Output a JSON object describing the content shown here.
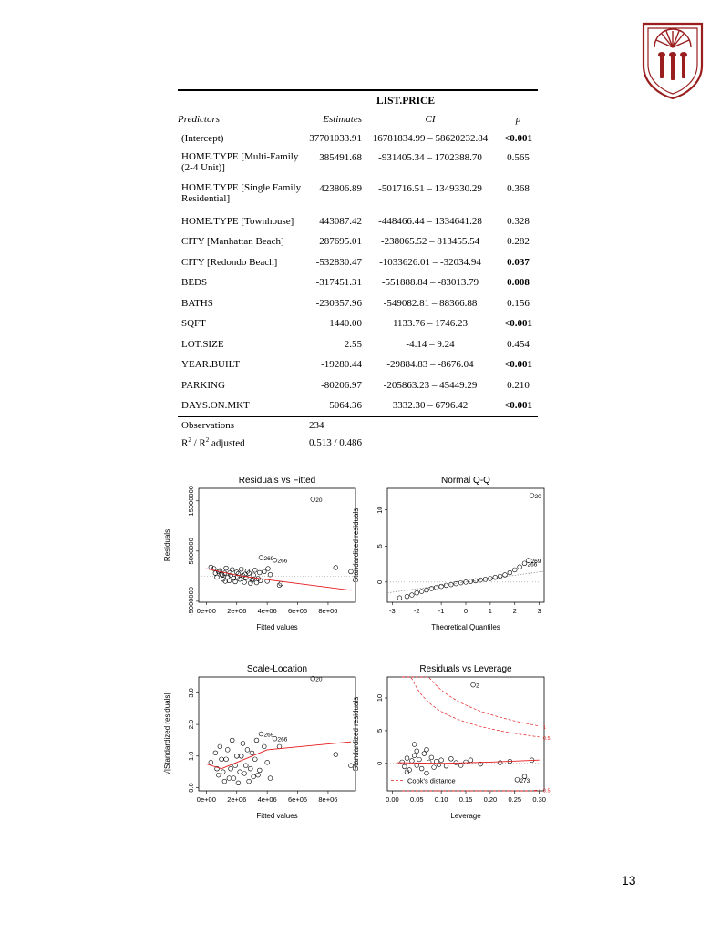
{
  "table": {
    "dependent_variable": "LIST.PRICE",
    "headers": {
      "predictors": "Predictors",
      "estimates": "Estimates",
      "ci": "CI",
      "p": "p"
    },
    "rows": [
      {
        "predictor": "(Intercept)",
        "estimate": "37701033.91",
        "ci": "16781834.99 – 58620232.84",
        "p": "<0.001"
      },
      {
        "predictor": "HOME.TYPE [Multi-Family (2-4 Unit)]",
        "estimate": "385491.68",
        "ci": "-931405.34 – 1702388.70",
        "p": "0.565"
      },
      {
        "predictor": "HOME.TYPE [Single Family Residential]",
        "estimate": "423806.89",
        "ci": "-501716.51 – 1349330.29",
        "p": "0.368"
      },
      {
        "predictor": "HOME.TYPE [Townhouse]",
        "estimate": "443087.42",
        "ci": "-448466.44 – 1334641.28",
        "p": "0.328"
      },
      {
        "predictor": "CITY [Manhattan Beach]",
        "estimate": "287695.01",
        "ci": "-238065.52 – 813455.54",
        "p": "0.282"
      },
      {
        "predictor": "CITY [Redondo Beach]",
        "estimate": "-532830.47",
        "ci": "-1033626.01 – -32034.94",
        "p": "0.037"
      },
      {
        "predictor": "BEDS",
        "estimate": "-317451.31",
        "ci": "-551888.84 – -83013.79",
        "p": "0.008"
      },
      {
        "predictor": "BATHS",
        "estimate": "-230357.96",
        "ci": "-549082.81 – 88366.88",
        "p": "0.156"
      },
      {
        "predictor": "SQFT",
        "estimate": "1440.00",
        "ci": "1133.76 – 1746.23",
        "p": "<0.001"
      },
      {
        "predictor": "LOT.SIZE",
        "estimate": "2.55",
        "ci": "-4.14 – 9.24",
        "p": "0.454"
      },
      {
        "predictor": "YEAR.BUILT",
        "estimate": "-19280.44",
        "ci": "-29884.83 – -8676.04",
        "p": "<0.001"
      },
      {
        "predictor": "PARKING",
        "estimate": "-80206.97",
        "ci": "-205863.23 – 45449.29",
        "p": "0.210"
      },
      {
        "predictor": "DAYS.ON.MKT",
        "estimate": "5064.36",
        "ci": "3332.30 – 6796.42",
        "p": "<0.001"
      }
    ],
    "observations_label": "Observations",
    "observations_value": "234",
    "r2_label_prefix": "R",
    "r2_label_mid": " / R",
    "r2_label_suffix": " adjusted",
    "r2_sup": "2",
    "r2_value": "0.513 / 0.486"
  },
  "chart_data": [
    {
      "type": "scatter",
      "title": "Residuals vs Fitted",
      "xlabel": "Fitted values",
      "ylabel": "Residuals",
      "xlim": [
        -500000,
        9800000
      ],
      "ylim": [
        -5200000,
        17500000
      ],
      "xticks": [
        0,
        2000000,
        4000000,
        6000000,
        8000000
      ],
      "xtick_labels": [
        "0e+00",
        "2e+06",
        "4e+06",
        "6e+06",
        "8e+06"
      ],
      "yticks": [
        -5000000,
        5000000,
        15000000
      ],
      "ytick_labels": [
        "-5000000",
        "5000000",
        "15000000"
      ],
      "annotations": [
        {
          "label": "20",
          "x": 7000000,
          "y": 15300000
        },
        {
          "label": "269",
          "x": 3600000,
          "y": 3700000
        },
        {
          "label": "266",
          "x": 4500000,
          "y": 3200000
        }
      ],
      "points": [
        [
          7000000,
          15300000
        ],
        [
          3600000,
          3700000
        ],
        [
          4500000,
          3200000
        ],
        [
          8500000,
          1700000
        ],
        [
          9500000,
          900000
        ],
        [
          4800000,
          -1800000
        ],
        [
          4900000,
          -1500000
        ],
        [
          500000,
          1500000
        ],
        [
          800000,
          900000
        ],
        [
          1000000,
          400000
        ],
        [
          1200000,
          600000
        ],
        [
          1400000,
          -200000
        ],
        [
          1600000,
          200000
        ],
        [
          1800000,
          -400000
        ],
        [
          2000000,
          800000
        ],
        [
          2200000,
          -600000
        ],
        [
          2400000,
          100000
        ],
        [
          2600000,
          -300000
        ],
        [
          2800000,
          600000
        ],
        [
          3000000,
          -800000
        ],
        [
          3200000,
          1200000
        ],
        [
          3400000,
          -500000
        ],
        [
          3800000,
          900000
        ],
        [
          4000000,
          -1000000
        ],
        [
          4200000,
          300000
        ],
        [
          700000,
          -200000
        ],
        [
          900000,
          1100000
        ],
        [
          1100000,
          -600000
        ],
        [
          1300000,
          1600000
        ],
        [
          1500000,
          -900000
        ],
        [
          1700000,
          1300000
        ],
        [
          1900000,
          -1100000
        ],
        [
          2100000,
          500000
        ],
        [
          2300000,
          1400000
        ],
        [
          2500000,
          -1200000
        ],
        [
          2700000,
          1000000
        ],
        [
          2900000,
          -1400000
        ],
        [
          3100000,
          200000
        ],
        [
          3300000,
          -1300000
        ],
        [
          3500000,
          700000
        ],
        [
          600000,
          600000
        ],
        [
          1050000,
          200000
        ],
        [
          1550000,
          700000
        ],
        [
          2050000,
          -200000
        ],
        [
          2550000,
          400000
        ],
        [
          3050000,
          -600000
        ],
        [
          3550000,
          -900000
        ],
        [
          4050000,
          1500000
        ],
        [
          300000,
          1800000
        ],
        [
          1250000,
          -1000000
        ]
      ],
      "smooth": [
        [
          0,
          1500000
        ],
        [
          2000000,
          200000
        ],
        [
          4000000,
          -700000
        ],
        [
          9500000,
          -2800000
        ]
      ]
    },
    {
      "type": "scatter",
      "title": "Normal Q-Q",
      "xlabel": "Theoretical Quantiles",
      "ylabel": "Standardized residuals",
      "xlim": [
        -3.2,
        3.2
      ],
      "ylim": [
        -2.8,
        13
      ],
      "xticks": [
        -3,
        -2,
        -1,
        0,
        1,
        2,
        3
      ],
      "xtick_labels": [
        "-3",
        "-2",
        "-1",
        "0",
        "1",
        "2",
        "3"
      ],
      "yticks": [
        0,
        5,
        10
      ],
      "ytick_labels": [
        "0",
        "5",
        "10"
      ],
      "annotations": [
        {
          "label": "20",
          "x": 2.7,
          "y": 12
        },
        {
          "label": "269",
          "x": 2.55,
          "y": 3
        },
        {
          "label": "266",
          "x": 2.4,
          "y": 2.6
        }
      ],
      "reference_line": [
        [
          -3.2,
          -1.5
        ],
        [
          3.2,
          1.5
        ]
      ],
      "points": [
        [
          -2.7,
          -2.2
        ],
        [
          -2.4,
          -2.0
        ],
        [
          -2.2,
          -1.8
        ],
        [
          -2.0,
          -1.5
        ],
        [
          -1.8,
          -1.3
        ],
        [
          -1.6,
          -1.1
        ],
        [
          -1.4,
          -0.9
        ],
        [
          -1.2,
          -0.75
        ],
        [
          -1.0,
          -0.6
        ],
        [
          -0.8,
          -0.45
        ],
        [
          -0.6,
          -0.35
        ],
        [
          -0.4,
          -0.22
        ],
        [
          -0.2,
          -0.1
        ],
        [
          0.0,
          0.0
        ],
        [
          0.2,
          0.1
        ],
        [
          0.4,
          0.18
        ],
        [
          0.6,
          0.28
        ],
        [
          0.8,
          0.38
        ],
        [
          1.0,
          0.5
        ],
        [
          1.2,
          0.65
        ],
        [
          1.4,
          0.8
        ],
        [
          1.6,
          1.0
        ],
        [
          1.8,
          1.3
        ],
        [
          2.0,
          1.7
        ],
        [
          2.2,
          2.1
        ],
        [
          2.4,
          2.6
        ],
        [
          2.55,
          3.0
        ],
        [
          2.7,
          12
        ]
      ]
    },
    {
      "type": "scatter",
      "title": "Scale-Location",
      "xlabel": "Fitted values",
      "ylabel": "√|Standardized residuals|",
      "xlim": [
        -500000,
        9800000
      ],
      "ylim": [
        -0.1,
        3.5
      ],
      "xticks": [
        0,
        2000000,
        4000000,
        6000000,
        8000000
      ],
      "xtick_labels": [
        "0e+00",
        "2e+06",
        "4e+06",
        "6e+06",
        "8e+06"
      ],
      "yticks": [
        0.0,
        1.0,
        2.0,
        3.0
      ],
      "ytick_labels": [
        "0.0",
        "1.0",
        "2.0",
        "3.0"
      ],
      "annotations": [
        {
          "label": "20",
          "x": 7000000,
          "y": 3.45
        },
        {
          "label": "269",
          "x": 3600000,
          "y": 1.7
        },
        {
          "label": "266",
          "x": 4500000,
          "y": 1.55
        }
      ],
      "points": [
        [
          7000000,
          3.45
        ],
        [
          3600000,
          1.7
        ],
        [
          4500000,
          1.55
        ],
        [
          8500000,
          1.05
        ],
        [
          9500000,
          0.7
        ],
        [
          300000,
          0.8
        ],
        [
          600000,
          1.1
        ],
        [
          800000,
          0.4
        ],
        [
          1000000,
          0.9
        ],
        [
          1200000,
          0.2
        ],
        [
          1400000,
          1.2
        ],
        [
          1600000,
          0.6
        ],
        [
          1800000,
          0.3
        ],
        [
          2000000,
          1.0
        ],
        [
          2200000,
          0.5
        ],
        [
          2400000,
          1.4
        ],
        [
          2600000,
          0.7
        ],
        [
          2800000,
          0.2
        ],
        [
          3000000,
          1.1
        ],
        [
          3200000,
          0.9
        ],
        [
          3400000,
          0.4
        ],
        [
          3800000,
          1.3
        ],
        [
          4000000,
          0.8
        ],
        [
          4200000,
          0.3
        ],
        [
          4800000,
          1.3
        ],
        [
          700000,
          0.6
        ],
        [
          900000,
          1.3
        ],
        [
          1100000,
          0.5
        ],
        [
          1300000,
          0.9
        ],
        [
          1500000,
          0.3
        ],
        [
          1700000,
          1.5
        ],
        [
          1900000,
          0.7
        ],
        [
          2100000,
          0.15
        ],
        [
          2300000,
          1.0
        ],
        [
          2500000,
          0.45
        ],
        [
          2700000,
          1.2
        ],
        [
          2900000,
          0.6
        ],
        [
          3100000,
          0.35
        ],
        [
          3300000,
          1.5
        ],
        [
          3500000,
          0.55
        ]
      ],
      "smooth": [
        [
          0,
          0.75
        ],
        [
          1000000,
          0.6
        ],
        [
          2000000,
          0.8
        ],
        [
          4000000,
          1.2
        ],
        [
          9500000,
          1.45
        ]
      ]
    },
    {
      "type": "scatter",
      "title": "Residuals vs Leverage",
      "xlabel": "Leverage",
      "ylabel": "Standardized residuals",
      "xlim": [
        -0.01,
        0.31
      ],
      "ylim": [
        -4.2,
        13.2
      ],
      "xticks": [
        0.0,
        0.05,
        0.1,
        0.15,
        0.2,
        0.25,
        0.3
      ],
      "xtick_labels": [
        "0.00",
        "0.05",
        "0.10",
        "0.15",
        "0.20",
        "0.25",
        "0.30"
      ],
      "yticks": [
        0,
        5,
        10
      ],
      "ytick_labels": [
        "0",
        "5",
        "10"
      ],
      "annotations": [
        {
          "label": "2",
          "x": 0.165,
          "y": 12
        },
        {
          "label": "273",
          "x": 0.255,
          "y": -2.5
        },
        {
          "label": "1",
          "x": 0.308,
          "y": 5.7
        },
        {
          "label": "0.5",
          "x": 0.308,
          "y": 4
        },
        {
          "label": "0.5",
          "x": 0.308,
          "y": -4
        }
      ],
      "legend": "Cook's distance",
      "cooks_levels": [
        0.5,
        1
      ],
      "points": [
        [
          0.165,
          12
        ],
        [
          0.255,
          -2.5
        ],
        [
          0.27,
          -2.0
        ],
        [
          0.285,
          0.5
        ],
        [
          0.24,
          0.3
        ],
        [
          0.22,
          0.1
        ],
        [
          0.02,
          0.2
        ],
        [
          0.025,
          -0.5
        ],
        [
          0.03,
          0.8
        ],
        [
          0.035,
          -1.0
        ],
        [
          0.04,
          0.4
        ],
        [
          0.045,
          1.2
        ],
        [
          0.05,
          -0.3
        ],
        [
          0.055,
          0.6
        ],
        [
          0.06,
          -0.8
        ],
        [
          0.065,
          1.5
        ],
        [
          0.07,
          -1.5
        ],
        [
          0.075,
          0.2
        ],
        [
          0.08,
          0.9
        ],
        [
          0.085,
          -0.6
        ],
        [
          0.09,
          0.3
        ],
        [
          0.095,
          -0.2
        ],
        [
          0.1,
          0.5
        ],
        [
          0.11,
          -0.4
        ],
        [
          0.12,
          0.7
        ],
        [
          0.13,
          0.1
        ],
        [
          0.14,
          -0.3
        ],
        [
          0.15,
          0.2
        ],
        [
          0.16,
          0.5
        ],
        [
          0.18,
          -0.1
        ],
        [
          0.045,
          2.9
        ],
        [
          0.05,
          1.9
        ],
        [
          0.03,
          -1.3
        ],
        [
          0.07,
          2.1
        ]
      ],
      "smooth": [
        [
          0.01,
          0.1
        ],
        [
          0.1,
          0.0
        ],
        [
          0.2,
          0.2
        ],
        [
          0.3,
          0.5
        ]
      ]
    }
  ],
  "page_number": "13"
}
